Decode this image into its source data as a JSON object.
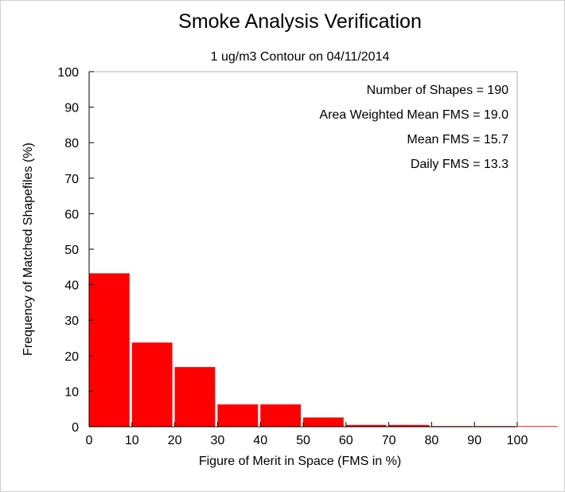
{
  "chart_data": {
    "type": "bar",
    "title": "Smoke Analysis Verification",
    "subtitle": "1 ug/m3 Contour on 04/11/2014",
    "xlabel": "Figure of Merit in Space (FMS in %)",
    "ylabel": "Frequency of Matched Shapefiles (%)",
    "xlim": [
      0,
      100
    ],
    "ylim": [
      0,
      100
    ],
    "x_ticks": [
      "0",
      "10",
      "20",
      "30",
      "40",
      "50",
      "60",
      "70",
      "80",
      "90",
      "100"
    ],
    "y_ticks": [
      "0",
      "10",
      "20",
      "30",
      "40",
      "50",
      "60",
      "70",
      "80",
      "90",
      "100"
    ],
    "bin_width": 10,
    "bins": [
      {
        "start": 0,
        "end": 10,
        "value": 43.2
      },
      {
        "start": 10,
        "end": 20,
        "value": 23.7
      },
      {
        "start": 20,
        "end": 30,
        "value": 16.8
      },
      {
        "start": 30,
        "end": 40,
        "value": 6.3
      },
      {
        "start": 40,
        "end": 50,
        "value": 6.3
      },
      {
        "start": 50,
        "end": 60,
        "value": 2.6
      },
      {
        "start": 60,
        "end": 70,
        "value": 0.5
      },
      {
        "start": 70,
        "end": 80,
        "value": 0.5
      },
      {
        "start": 80,
        "end": 90,
        "value": 0
      },
      {
        "start": 90,
        "end": 100,
        "value": 0
      },
      {
        "start": 100,
        "end": 110,
        "value": 0
      }
    ],
    "bar_color": "#ff0000",
    "grid": false,
    "annotations": [
      "Number of Shapes = 190",
      "Area Weighted Mean FMS = 19.0",
      "Mean FMS = 15.7",
      "Daily FMS = 13.3"
    ]
  }
}
